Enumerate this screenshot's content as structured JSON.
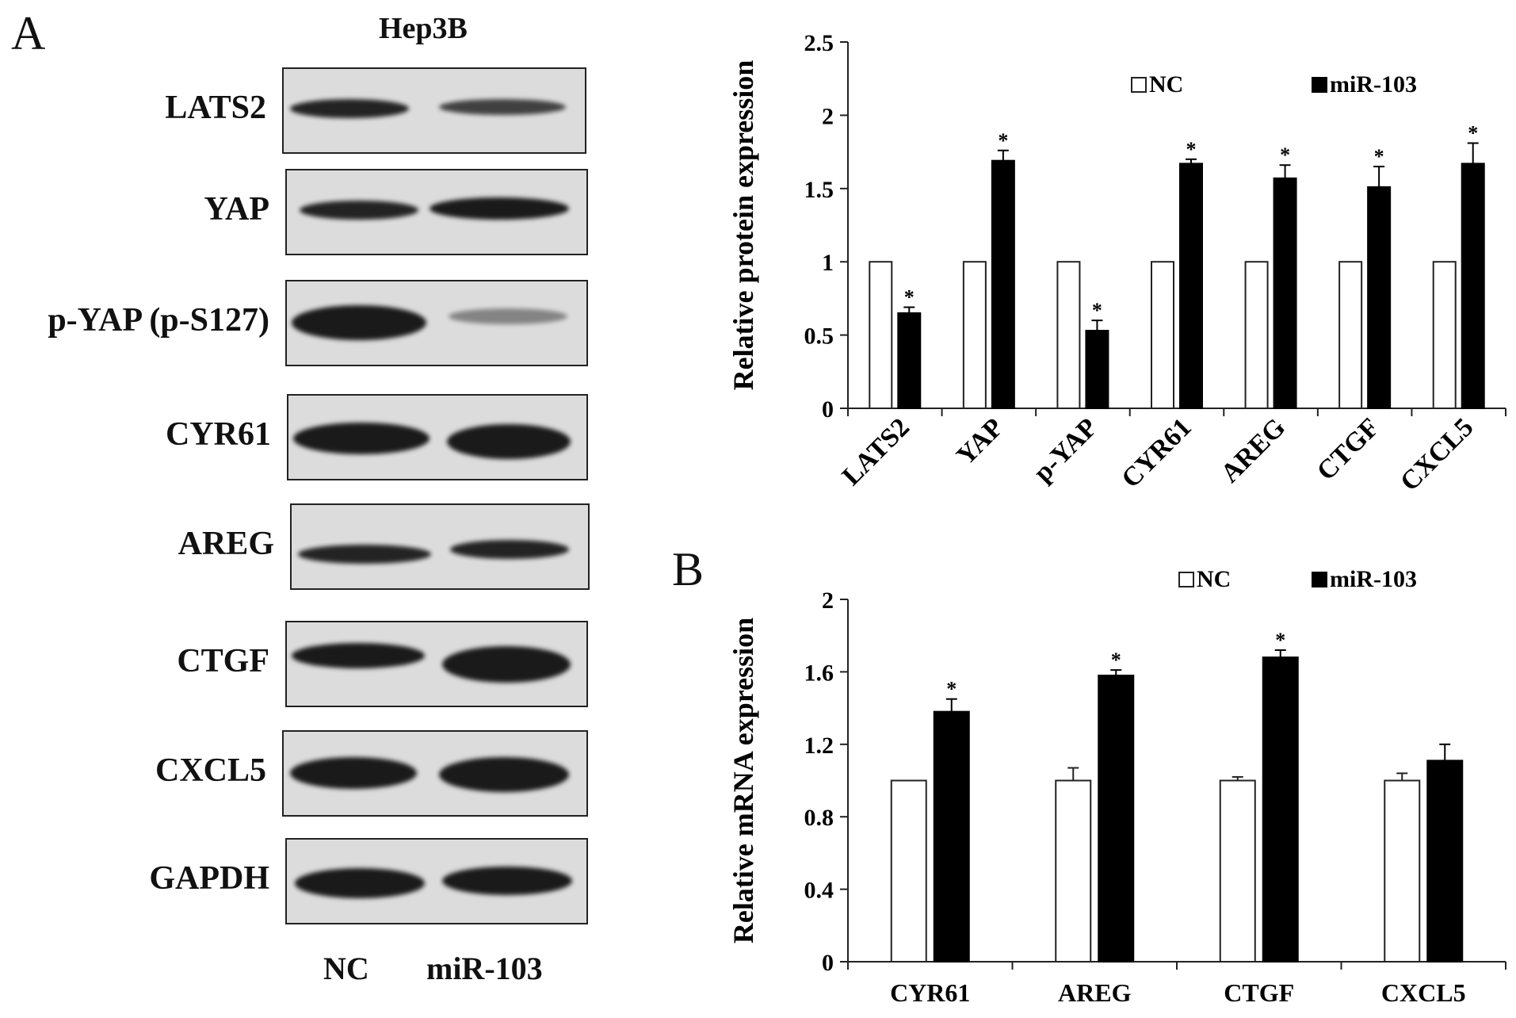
{
  "panelA": {
    "letter": "A",
    "cell_line": "Hep3B",
    "blots": [
      {
        "label": "LATS2"
      },
      {
        "label": "YAP"
      },
      {
        "label": "p-YAP (p-S127)"
      },
      {
        "label": "CYR61"
      },
      {
        "label": "AREG"
      },
      {
        "label": "CTGF"
      },
      {
        "label": "CXCL5"
      },
      {
        "label": "GAPDH"
      }
    ],
    "lanes": [
      "NC",
      "miR-103"
    ]
  },
  "panelB": {
    "letter": "B"
  },
  "chart_data": [
    {
      "type": "bar",
      "categories": [
        "LATS2",
        "YAP",
        "p-YAP",
        "CYR61",
        "AREG",
        "CTGF",
        "CXCL5"
      ],
      "series": [
        {
          "name": "NC",
          "values": [
            1,
            1,
            1,
            1,
            1,
            1,
            1
          ],
          "color": "#ffffff"
        },
        {
          "name": "miR-103",
          "values": [
            0.65,
            1.69,
            0.53,
            1.67,
            1.57,
            1.51,
            1.67
          ],
          "errors": [
            0.04,
            0.07,
            0.07,
            0.03,
            0.09,
            0.14,
            0.14
          ],
          "significant": [
            true,
            true,
            true,
            true,
            true,
            true,
            true
          ],
          "color": "#000000"
        }
      ],
      "ylabel": "Relative protein expression",
      "ylim": [
        0,
        2.5
      ],
      "yticks": [
        0,
        0.5,
        1,
        1.5,
        2,
        2.5
      ],
      "ytick_labels": [
        "0",
        "0.5",
        "1",
        "1.5",
        "2",
        "2.5"
      ],
      "significance_mark": "*",
      "legend": "top-right",
      "grid": false
    },
    {
      "type": "bar",
      "categories": [
        "CYR61",
        "AREG",
        "CTGF",
        "CXCL5"
      ],
      "series": [
        {
          "name": "NC",
          "values": [
            1.0,
            1.0,
            1.0,
            1.0
          ],
          "errors": [
            0.0,
            0.07,
            0.02,
            0.04
          ],
          "color": "#ffffff"
        },
        {
          "name": "miR-103",
          "values": [
            1.38,
            1.58,
            1.68,
            1.11
          ],
          "errors": [
            0.07,
            0.03,
            0.04,
            0.09
          ],
          "significant": [
            true,
            true,
            true,
            false
          ],
          "color": "#000000"
        }
      ],
      "ylabel": "Relative mRNA expression",
      "ylim": [
        0,
        2
      ],
      "yticks": [
        0,
        0.4,
        0.8,
        1.2,
        1.6,
        2
      ],
      "ytick_labels": [
        "0",
        "0.4",
        "0.8",
        "1.2",
        "1.6",
        "2"
      ],
      "significance_mark": "*",
      "legend": "top-right",
      "grid": false
    }
  ]
}
